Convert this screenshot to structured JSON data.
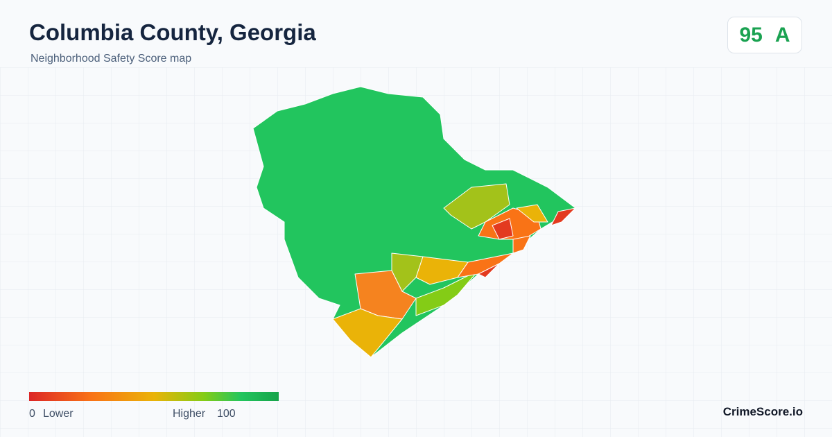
{
  "header": {
    "title": "Columbia County, Georgia",
    "subtitle": "Neighborhood Safety Score map"
  },
  "score": {
    "value": "95",
    "grade": "A"
  },
  "legend": {
    "min": "0",
    "min_label": "Lower",
    "max_label": "Higher",
    "max": "100"
  },
  "brand": "CrimeScore.io"
}
